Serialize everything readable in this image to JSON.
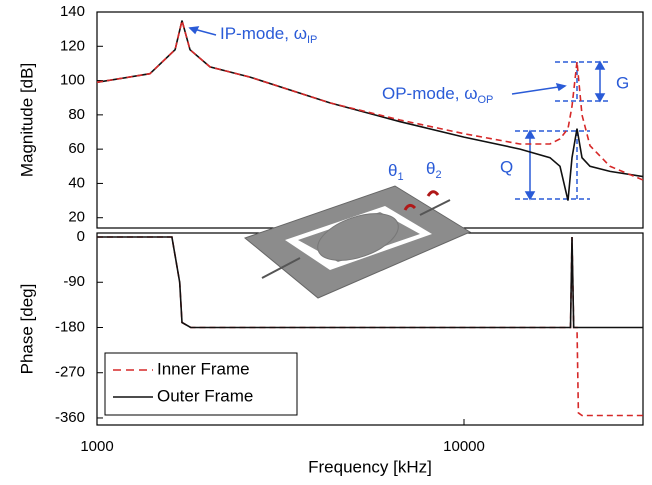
{
  "chart_data": [
    {
      "type": "line",
      "y_label": "Magnitude [dB]",
      "xlog": true,
      "xlim": [
        1000,
        30740
      ],
      "ylim": [
        14,
        140
      ],
      "yticks": [
        20,
        40,
        60,
        80,
        100,
        120,
        140
      ],
      "x": [
        1000,
        1394,
        1632,
        1704,
        1792,
        2032,
        2612,
        4315,
        6695,
        10000,
        14210,
        17150,
        18260,
        19200,
        19690,
        20320,
        20970,
        22040,
        24990,
        30740
      ],
      "series": [
        {
          "color": "#111111",
          "dash": false,
          "values": [
            99,
            104,
            118,
            135,
            118,
            108,
            102,
            87,
            76,
            67,
            60,
            55,
            50,
            30,
            55,
            72,
            55,
            50,
            47,
            44
          ]
        },
        {
          "color": "#d62828",
          "dash": true,
          "values": [
            99,
            104,
            118,
            135,
            118,
            108,
            102,
            87,
            77,
            69,
            63,
            63,
            66,
            72,
            85,
            111,
            80,
            62,
            50,
            42
          ]
        }
      ],
      "annotations": [
        {
          "text": "IP-mode, ω",
          "sub": "IP"
        },
        {
          "text": "OP-mode, ω",
          "sub": "OP"
        },
        {
          "text": "G"
        },
        {
          "text": "Q"
        },
        {
          "text": "θ",
          "sub": "1"
        },
        {
          "text": "θ",
          "sub": "2"
        }
      ]
    },
    {
      "type": "line",
      "y_label": "Phase [deg]",
      "x_label": "Frequency [kHz]",
      "xlog": true,
      "xlim": [
        1000,
        30740
      ],
      "ylim": [
        -374,
        8
      ],
      "yticks": [
        0,
        -90,
        -180,
        -270,
        -360
      ],
      "xticks": [
        1000,
        10000
      ],
      "legend": "lower left",
      "x": [
        1000,
        1600,
        1680,
        1704,
        1800,
        19200,
        19500,
        19690,
        19900,
        20320,
        20500,
        20970,
        30740
      ],
      "series": [
        {
          "name": "Inner Frame",
          "color": "#d62828",
          "dash": true,
          "values": [
            0,
            0,
            -90,
            -170,
            -180,
            -180,
            -180,
            0,
            -180,
            -180,
            -350,
            -355,
            -355
          ]
        },
        {
          "name": "Outer Frame",
          "color": "#111111",
          "dash": false,
          "values": [
            0,
            0,
            -90,
            -170,
            -180,
            -180,
            -180,
            0,
            -180,
            -180,
            -180,
            -180,
            -180
          ]
        }
      ]
    }
  ]
}
